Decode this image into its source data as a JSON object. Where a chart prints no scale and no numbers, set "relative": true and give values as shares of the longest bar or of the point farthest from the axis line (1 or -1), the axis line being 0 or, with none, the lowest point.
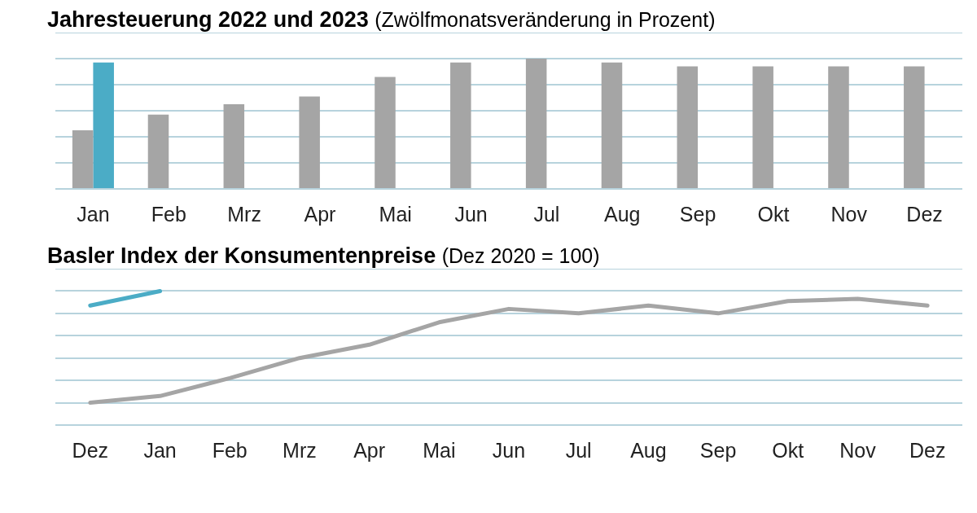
{
  "chart_data": [
    {
      "type": "bar",
      "title": "Jahresteuerung 2022 und 2023",
      "subtitle": "(Zwölfmonatsveränderung in Prozent)",
      "relative": true,
      "grid": "y",
      "legend": false,
      "categories": [
        "Jan",
        "Feb",
        "Mrz",
        "Apr",
        "Mai",
        "Jun",
        "Jul",
        "Aug",
        "Sep",
        "Okt",
        "Nov",
        "Dez"
      ],
      "series": [
        {
          "color": "#a5a5a5",
          "values": [
            0.45,
            0.57,
            0.65,
            0.71,
            0.86,
            0.97,
            1,
            0.97,
            0.94,
            0.94,
            0.94,
            0.94
          ]
        },
        {
          "color": "#4bacc6",
          "values": [
            0.97,
            null,
            null,
            null,
            null,
            null,
            null,
            null,
            null,
            null,
            null,
            null
          ]
        }
      ]
    },
    {
      "type": "line",
      "title": "Basler Index der Konsumentenpreise",
      "subtitle": "(Dez 2020 = 100)",
      "relative": true,
      "grid": "y",
      "legend": false,
      "marker": "none",
      "categories": [
        "Dez",
        "Jan",
        "Feb",
        "Mrz",
        "Apr",
        "Mai",
        "Jun",
        "Jul",
        "Aug",
        "Sep",
        "Okt",
        "Nov",
        "Dez"
      ],
      "series": [
        {
          "color": "#a5a5a5",
          "values": [
            0,
            0.06,
            0.22,
            0.4,
            0.52,
            0.72,
            0.84,
            0.8,
            0.87,
            0.8,
            0.91,
            0.93,
            0.87
          ]
        },
        {
          "color": "#4bacc6",
          "values": [
            0.87,
            1,
            null,
            null,
            null,
            null,
            null,
            null,
            null,
            null,
            null,
            null,
            null
          ]
        }
      ]
    }
  ]
}
